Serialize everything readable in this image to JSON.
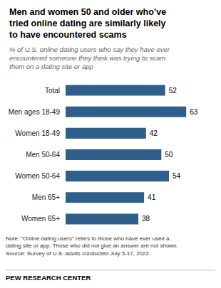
{
  "chart_data": {
    "type": "bar",
    "orientation": "horizontal",
    "title": "Men and women 50 and older who’ve\ntried online dating are similarly likely\nto have encountered scams",
    "subtitle": "% of U.S. online dating users who say they have ever\nencountered someone they think was trying to scam\nthem on a dating site or app",
    "categories": [
      "Total",
      "Men ages 18-49",
      "Women 18-49",
      "Men 50-64",
      "Women 50-64",
      "Men 65+",
      "Women 65+"
    ],
    "values": [
      52,
      63,
      42,
      50,
      54,
      41,
      38
    ],
    "color": "#2d5f8a",
    "xlim": [
      0,
      70
    ],
    "grid": false,
    "data_labels": true,
    "tick_labels": "y",
    "note": "Note: “Online dating users” refers to those who have ever used a\ndating site or app. Those who did not give an answer are not shown.\nSource: Survey of U.S. adults conducted July 5-17, 2022.",
    "source": "PEW RESEARCH CENTER"
  }
}
